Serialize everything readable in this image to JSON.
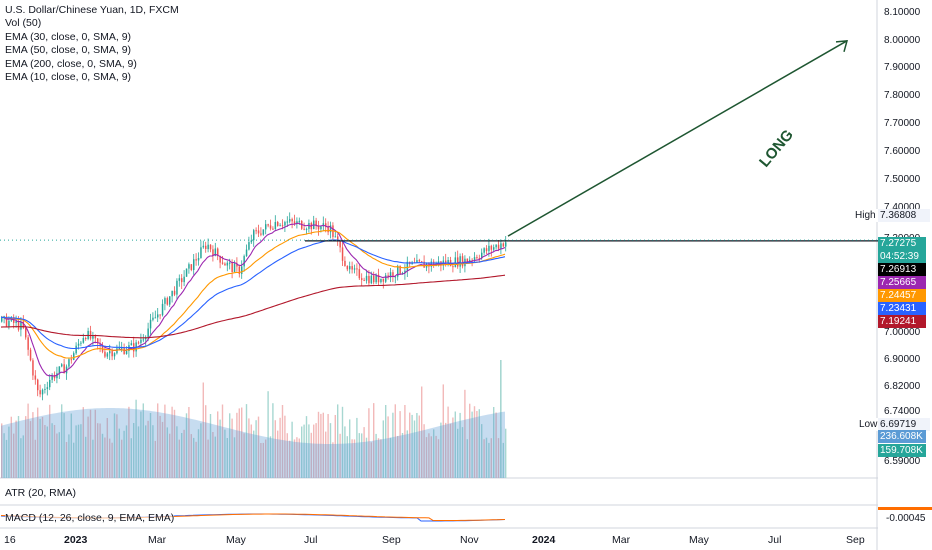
{
  "legend": {
    "symbol": "U.S. Dollar/Chinese Yuan, 1D, FXCM",
    "vol": "Vol (50)",
    "emas": [
      "EMA (30, close, 0, SMA, 9)",
      "EMA (50, close, 0, SMA, 9)",
      "EMA (200, close, 0, SMA, 9)",
      "EMA (10, close, 0, SMA, 9)"
    ]
  },
  "panes": {
    "atr": "ATR (20, RMA)",
    "macd": "MACD (12, 26, close, 9, EMA, EMA)",
    "macd_value": "-0.00045"
  },
  "annotation": {
    "text": "LONG"
  },
  "price_axis": {
    "ticks": [
      "8.10000",
      "8.00000",
      "7.90000",
      "7.80000",
      "7.70000",
      "7.60000",
      "7.50000",
      "7.40000",
      "7.30000",
      "7.00000",
      "6.90000",
      "6.82000",
      "6.74000",
      "6.59000"
    ]
  },
  "high_low": {
    "high_label": "High",
    "high_value": "7.36808",
    "low_label": "Low",
    "low_value": "6.69719"
  },
  "price_tags": [
    {
      "text": "7.27275",
      "color": "#26a69a"
    },
    {
      "text": "04:52:39",
      "color": "#26a69a"
    },
    {
      "text": "7.26913",
      "color": "#000000"
    },
    {
      "text": "7.25665",
      "color": "#9c27b0"
    },
    {
      "text": "7.24457",
      "color": "#ff9800"
    },
    {
      "text": "7.23431",
      "color": "#2962ff"
    },
    {
      "text": "7.19241",
      "color": "#b2182b"
    },
    {
      "text": "236.608K",
      "color": "#5b9bd5"
    },
    {
      "text": "159.708K",
      "color": "#26a69a"
    }
  ],
  "time_axis": {
    "labels": [
      "16",
      "2023",
      "Mar",
      "May",
      "Jul",
      "Sep",
      "Nov",
      "2024",
      "Mar",
      "May",
      "Jul",
      "Sep"
    ]
  },
  "chart_data": {
    "type": "candlestick",
    "title": "U.S. Dollar/Chinese Yuan, 1D, FXCM",
    "timeframe": "1D",
    "xlabel": "",
    "ylabel": "",
    "ylim": [
      6.59,
      8.1
    ],
    "grid": false,
    "price_path": [
      {
        "date": "2022-12-16",
        "price": 6.98
      },
      {
        "date": "2022-12-28",
        "price": 6.96
      },
      {
        "date": "2023-01-13",
        "price": 6.71
      },
      {
        "date": "2023-01-25",
        "price": 6.78
      },
      {
        "date": "2023-02-10",
        "price": 6.82
      },
      {
        "date": "2023-02-28",
        "price": 6.94
      },
      {
        "date": "2023-03-20",
        "price": 6.87
      },
      {
        "date": "2023-04-20",
        "price": 6.89
      },
      {
        "date": "2023-05-20",
        "price": 7.05
      },
      {
        "date": "2023-06-30",
        "price": 7.26
      },
      {
        "date": "2023-07-18",
        "price": 7.19
      },
      {
        "date": "2023-08-01",
        "price": 7.16
      },
      {
        "date": "2023-08-15",
        "price": 7.29
      },
      {
        "date": "2023-09-08",
        "price": 7.34
      },
      {
        "date": "2023-10-31",
        "price": 7.32
      },
      {
        "date": "2023-11-20",
        "price": 7.16
      },
      {
        "date": "2023-12-15",
        "price": 7.13
      },
      {
        "date": "2024-01-20",
        "price": 7.18
      },
      {
        "date": "2024-03-15",
        "price": 7.2
      },
      {
        "date": "2024-04-25",
        "price": 7.27
      }
    ],
    "emas": [
      {
        "name": "EMA 10",
        "color": "#9c27b0",
        "last": 7.25665
      },
      {
        "name": "EMA 30",
        "color": "#ff9800",
        "last": 7.24457
      },
      {
        "name": "EMA 50",
        "color": "#2962ff",
        "last": 7.23431
      },
      {
        "name": "EMA 200",
        "color": "#b2182b",
        "last": 7.19241
      }
    ],
    "resistance": 7.27,
    "high": 7.36808,
    "low": 6.69719,
    "last_price": 7.27275,
    "target": 8.0,
    "volume_ma": 236608,
    "volume_last": 159708,
    "macd_last": -0.00045
  }
}
